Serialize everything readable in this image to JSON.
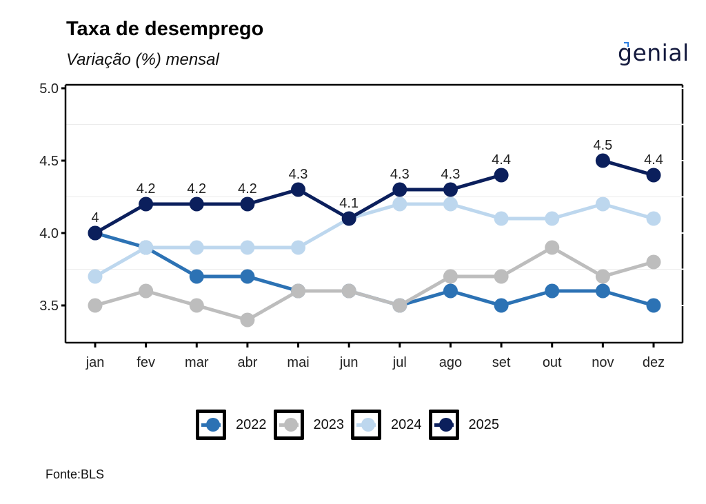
{
  "header": {
    "title": "Taxa de desemprego",
    "subtitle": "Variação (%) mensal",
    "logo_text": "genial",
    "logo_accent_color": "#2a7de1"
  },
  "source": "Fonte:BLS",
  "chart_data": {
    "type": "line",
    "title": "Taxa de desemprego",
    "subtitle": "Variação (%) mensal",
    "xlabel": "",
    "ylabel": "",
    "categories": [
      "jan",
      "fev",
      "mar",
      "abr",
      "mai",
      "jun",
      "jul",
      "ago",
      "set",
      "out",
      "nov",
      "dez"
    ],
    "ylim": [
      3.24,
      5.02
    ],
    "yticks": [
      3.5,
      4.0,
      4.5,
      5.0
    ],
    "ytick_labels": [
      "3.5",
      "4.0",
      "4.5",
      "5.0"
    ],
    "minor_grid": [
      3.75,
      4.25,
      4.75
    ],
    "grid": true,
    "legend_position": "bottom",
    "series": [
      {
        "name": "2022",
        "color": "#2c72b4",
        "labeled": false,
        "values": [
          4.0,
          3.9,
          3.7,
          3.7,
          3.6,
          3.6,
          3.5,
          3.6,
          3.5,
          3.6,
          3.6,
          3.5
        ]
      },
      {
        "name": "2023",
        "color": "#bdbdbd",
        "labeled": false,
        "values": [
          3.5,
          3.6,
          3.5,
          3.4,
          3.6,
          3.6,
          3.5,
          3.7,
          3.7,
          3.9,
          3.7,
          3.8
        ]
      },
      {
        "name": "2024",
        "color": "#bdd7ee",
        "labeled": false,
        "values": [
          3.7,
          3.9,
          3.9,
          3.9,
          3.9,
          4.1,
          4.2,
          4.2,
          4.1,
          4.1,
          4.2,
          4.1
        ]
      },
      {
        "name": "2025",
        "color": "#0b1f5c",
        "labeled": true,
        "values": [
          4.0,
          4.2,
          4.2,
          4.2,
          4.3,
          4.1,
          4.3,
          4.3,
          4.4,
          null,
          4.5,
          4.4
        ],
        "data_labels": [
          "4",
          "4.2",
          "4.2",
          "4.2",
          "4.3",
          "4.1",
          "4.3",
          "4.3",
          "4.4",
          null,
          "4.5",
          "4.4"
        ]
      }
    ]
  },
  "legend": {
    "items": [
      {
        "label": "2022",
        "color": "#2c72b4"
      },
      {
        "label": "2023",
        "color": "#bdbdbd"
      },
      {
        "label": "2024",
        "color": "#bdd7ee"
      },
      {
        "label": "2025",
        "color": "#0b1f5c"
      }
    ]
  }
}
